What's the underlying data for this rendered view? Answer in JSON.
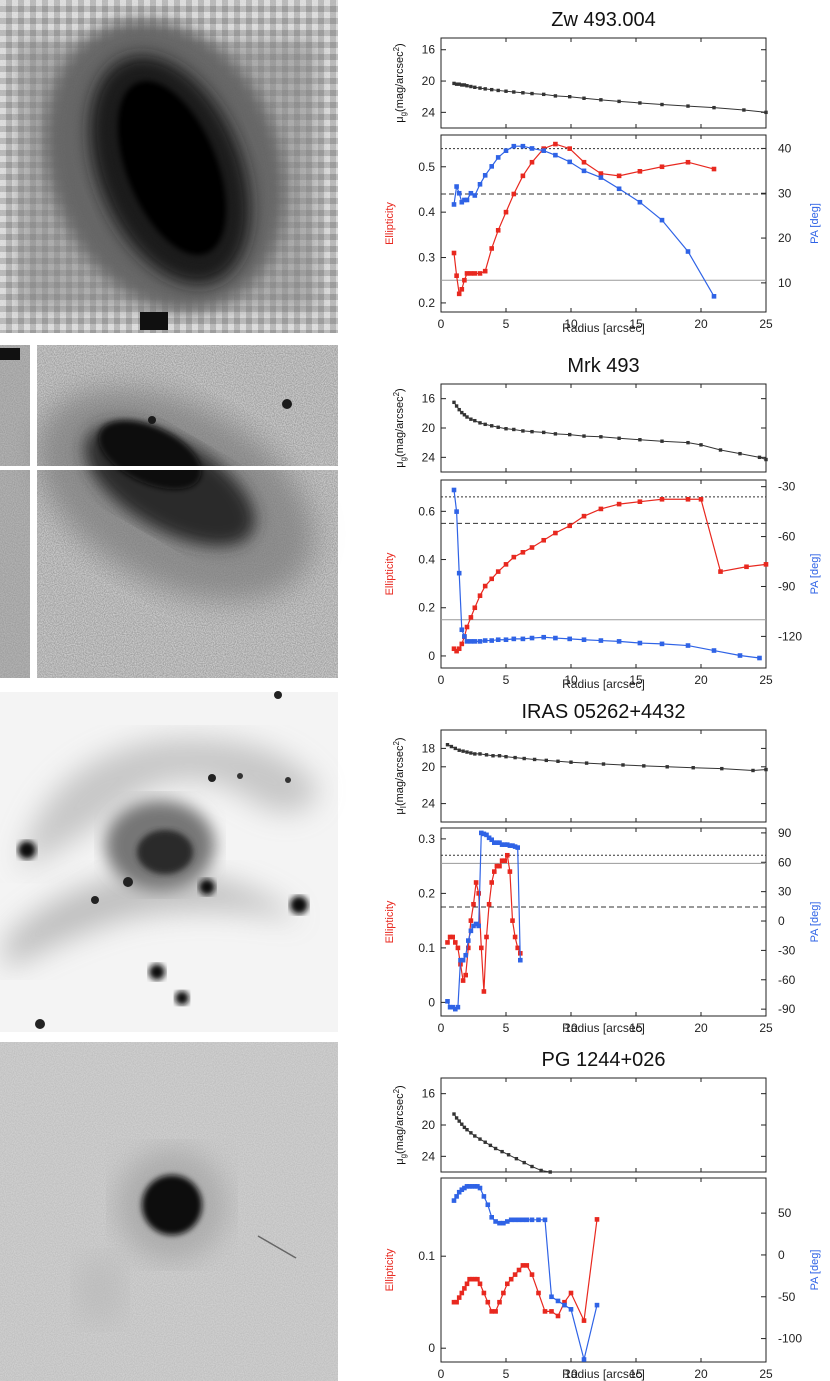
{
  "chart_data": [
    {
      "type": "line",
      "title": "Zw 493.004",
      "x_label": "Radius [arcsec]",
      "x_range": [
        0,
        25
      ],
      "x_ticks": [
        0,
        5,
        10,
        15,
        20,
        25
      ],
      "sb_panel": {
        "ylabel_main": "μ",
        "ylabel_sub": "g",
        "ylabel_rest": "(mag/arcsec",
        "ylabel_sup": "2",
        "ylabel_end": ")",
        "y_range": [
          26,
          14.5
        ],
        "y_ticks": [
          16,
          20,
          24
        ],
        "x": [
          1,
          1.2,
          1.4,
          1.6,
          1.8,
          2,
          2.3,
          2.6,
          3,
          3.4,
          3.9,
          4.4,
          5,
          5.6,
          6.3,
          7,
          7.9,
          8.8,
          9.9,
          11,
          12.3,
          13.7,
          15.3,
          17,
          19,
          21,
          23.3,
          25
        ],
        "y": [
          20.3,
          20.4,
          20.4,
          20.5,
          20.5,
          20.6,
          20.7,
          20.8,
          20.9,
          21.0,
          21.1,
          21.2,
          21.3,
          21.4,
          21.5,
          21.6,
          21.7,
          21.9,
          22.0,
          22.2,
          22.4,
          22.6,
          22.8,
          23.0,
          23.2,
          23.4,
          23.7,
          24.0
        ]
      },
      "left_axis": {
        "label": "Ellipticity",
        "range": [
          0.18,
          0.57
        ],
        "ticks": [
          "0.2",
          "0.3",
          "0.4",
          "0.5"
        ],
        "tick_values": [
          0.2,
          0.3,
          0.4,
          0.5
        ]
      },
      "right_axis": {
        "label": "PA [deg]",
        "range": [
          3.5,
          43
        ],
        "ticks": [
          "10",
          "20",
          "30",
          "40"
        ],
        "tick_values": [
          10,
          20,
          30,
          40
        ]
      },
      "ref_lines": [
        {
          "value": 0.54,
          "axis": "left",
          "style": "dotted"
        },
        {
          "value": 0.44,
          "axis": "left",
          "style": "dashed"
        },
        {
          "value": 0.25,
          "axis": "left",
          "style": "solid"
        }
      ],
      "series": [
        {
          "axis": "left",
          "color": "#e8281f",
          "x": [
            1.0,
            1.2,
            1.4,
            1.6,
            1.8,
            2.0,
            2.3,
            2.6,
            3.0,
            3.4,
            3.9,
            4.4,
            5.0,
            5.6,
            6.3,
            7.0,
            7.9,
            8.8,
            9.9,
            11.0,
            12.3,
            13.7,
            15.3,
            17.0,
            19.0,
            21.0
          ],
          "y": [
            0.31,
            0.26,
            0.22,
            0.23,
            0.25,
            0.265,
            0.265,
            0.265,
            0.265,
            0.27,
            0.32,
            0.36,
            0.4,
            0.44,
            0.48,
            0.51,
            0.54,
            0.55,
            0.54,
            0.51,
            0.485,
            0.48,
            0.49,
            0.5,
            0.51,
            0.495
          ]
        },
        {
          "axis": "right",
          "color": "#2f63e6",
          "x": [
            1.0,
            1.2,
            1.4,
            1.6,
            1.8,
            2.0,
            2.3,
            2.6,
            3.0,
            3.4,
            3.9,
            4.4,
            5.0,
            5.6,
            6.3,
            7.0,
            7.9,
            8.8,
            9.9,
            11.0,
            12.3,
            13.7,
            15.3,
            17.0,
            19.0,
            21.0
          ],
          "y": [
            27.5,
            31.5,
            30,
            28,
            28.5,
            28.5,
            30,
            29.5,
            32,
            34,
            36,
            38,
            39.5,
            40.5,
            40.5,
            40,
            39.5,
            38.5,
            37,
            35,
            33.5,
            31,
            28,
            24,
            17,
            7
          ]
        }
      ]
    },
    {
      "type": "line",
      "title": "Mrk 493",
      "x_label": "Radius [arcsec]",
      "x_range": [
        0,
        25
      ],
      "x_ticks": [
        0,
        5,
        10,
        15,
        20,
        25
      ],
      "sb_panel": {
        "ylabel_main": "μ",
        "ylabel_sub": "g",
        "ylabel_rest": "(mag/arcsec",
        "ylabel_sup": "2",
        "ylabel_end": ")",
        "y_range": [
          26,
          14
        ],
        "y_ticks": [
          16,
          20,
          24
        ],
        "x": [
          1,
          1.2,
          1.4,
          1.6,
          1.8,
          2,
          2.3,
          2.6,
          3,
          3.4,
          3.9,
          4.4,
          5,
          5.6,
          6.3,
          7,
          7.9,
          8.8,
          9.9,
          11,
          12.3,
          13.7,
          15.3,
          17,
          19,
          20,
          21.5,
          23,
          24.5,
          25
        ],
        "y": [
          16.5,
          17.0,
          17.5,
          17.9,
          18.2,
          18.5,
          18.8,
          19.0,
          19.3,
          19.5,
          19.7,
          19.9,
          20.1,
          20.2,
          20.4,
          20.5,
          20.6,
          20.8,
          20.9,
          21.1,
          21.2,
          21.4,
          21.6,
          21.8,
          22.0,
          22.3,
          23.0,
          23.5,
          24.0,
          24.3
        ]
      },
      "left_axis": {
        "label": "Ellipticity",
        "range": [
          -0.05,
          0.73
        ],
        "ticks": [
          "0",
          "0.2",
          "0.4",
          "0.6"
        ],
        "tick_values": [
          0,
          0.2,
          0.4,
          0.6
        ]
      },
      "right_axis": {
        "label": "PA [deg]",
        "range": [
          -139,
          -26
        ],
        "ticks": [
          "-30",
          "-60",
          "-90",
          "-120"
        ],
        "tick_values": [
          -30,
          -60,
          -90,
          -120
        ]
      },
      "ref_lines": [
        {
          "value": 0.66,
          "axis": "left",
          "style": "dotted"
        },
        {
          "value": 0.55,
          "axis": "left",
          "style": "dashed"
        },
        {
          "value": 0.15,
          "axis": "left",
          "style": "solid"
        }
      ],
      "series": [
        {
          "axis": "left",
          "color": "#e8281f",
          "x": [
            1.0,
            1.2,
            1.4,
            1.6,
            1.8,
            2.0,
            2.3,
            2.6,
            3.0,
            3.4,
            3.9,
            4.4,
            5.0,
            5.6,
            6.3,
            7.0,
            7.9,
            8.8,
            9.9,
            11.0,
            12.3,
            13.7,
            15.3,
            17.0,
            19.0,
            20.0,
            21.5,
            23.5,
            25.0
          ],
          "y": [
            0.03,
            0.02,
            0.03,
            0.05,
            0.08,
            0.12,
            0.16,
            0.2,
            0.25,
            0.29,
            0.32,
            0.35,
            0.38,
            0.41,
            0.43,
            0.45,
            0.48,
            0.51,
            0.54,
            0.58,
            0.61,
            0.63,
            0.64,
            0.65,
            0.65,
            0.65,
            0.35,
            0.37,
            0.38
          ]
        },
        {
          "axis": "right",
          "color": "#2f63e6",
          "x": [
            1.0,
            1.2,
            1.4,
            1.6,
            1.8,
            2.0,
            2.3,
            2.6,
            3.0,
            3.4,
            3.9,
            4.4,
            5.0,
            5.6,
            6.3,
            7.0,
            7.9,
            8.8,
            9.9,
            11.0,
            12.3,
            13.7,
            15.3,
            17.0,
            19.0,
            21.0,
            23.0,
            24.5
          ],
          "y": [
            -32,
            -45,
            -82,
            -116,
            -120,
            -123,
            -123,
            -123,
            -123,
            -122.5,
            -122.5,
            -122,
            -122,
            -121.5,
            -121.5,
            -121,
            -120.5,
            -121,
            -121.5,
            -122,
            -122.5,
            -123,
            -124,
            -124.5,
            -125.5,
            -128.5,
            -131.5,
            -133
          ]
        }
      ]
    },
    {
      "type": "line",
      "title": "IRAS 05262+4432",
      "x_label": "Radius [arcsec]",
      "x_range": [
        0,
        25
      ],
      "x_ticks": [
        0,
        5,
        10,
        15,
        20,
        25
      ],
      "sb_panel": {
        "ylabel_main": "μ",
        "ylabel_sub": "I",
        "ylabel_rest": "(mag/arcsec",
        "ylabel_sup": "2",
        "ylabel_end": ")",
        "y_range": [
          26,
          16
        ],
        "y_ticks": [
          18,
          20,
          24
        ],
        "x": [
          0.5,
          0.8,
          1.1,
          1.4,
          1.7,
          2,
          2.3,
          2.6,
          3,
          3.5,
          4,
          4.5,
          5,
          5.7,
          6.4,
          7.2,
          8.1,
          9,
          10,
          11.2,
          12.5,
          14,
          15.6,
          17.4,
          19.4,
          21.6,
          24,
          25
        ],
        "y": [
          17.6,
          17.8,
          18.0,
          18.2,
          18.3,
          18.4,
          18.5,
          18.6,
          18.6,
          18.7,
          18.8,
          18.8,
          18.9,
          19.0,
          19.1,
          19.2,
          19.3,
          19.4,
          19.5,
          19.6,
          19.7,
          19.8,
          19.9,
          20.0,
          20.1,
          20.2,
          20.4,
          20.3
        ]
      },
      "left_axis": {
        "label": "Ellipticity",
        "range": [
          -0.025,
          0.32
        ],
        "ticks": [
          "0",
          "0.1",
          "0.2",
          "0.3"
        ],
        "tick_values": [
          0,
          0.1,
          0.2,
          0.3
        ]
      },
      "right_axis": {
        "label": "PA [deg]",
        "range": [
          -97,
          95
        ],
        "ticks": [
          "90",
          "60",
          "30",
          "0",
          "-30",
          "-60",
          "-90"
        ],
        "tick_values": [
          90,
          60,
          30,
          0,
          -30,
          -60,
          -90
        ]
      },
      "ref_lines": [
        {
          "value": 0.27,
          "axis": "left",
          "style": "dotted"
        },
        {
          "value": 0.255,
          "axis": "left",
          "style": "solid"
        },
        {
          "value": 0.175,
          "axis": "left",
          "style": "dashed"
        }
      ],
      "series": [
        {
          "axis": "left",
          "color": "#e8281f",
          "x": [
            0.5,
            0.7,
            0.9,
            1.1,
            1.3,
            1.5,
            1.7,
            1.9,
            2.1,
            2.3,
            2.5,
            2.7,
            2.9,
            3.1,
            3.3,
            3.5,
            3.7,
            3.9,
            4.1,
            4.3,
            4.5,
            4.7,
            4.9,
            5.1,
            5.3,
            5.5,
            5.7,
            5.9,
            6.1
          ],
          "y": [
            0.11,
            0.12,
            0.12,
            0.11,
            0.1,
            0.07,
            0.04,
            0.05,
            0.1,
            0.15,
            0.18,
            0.22,
            0.2,
            0.1,
            0.02,
            0.12,
            0.18,
            0.22,
            0.24,
            0.25,
            0.25,
            0.26,
            0.26,
            0.27,
            0.24,
            0.15,
            0.12,
            0.1,
            0.09
          ]
        },
        {
          "axis": "right",
          "color": "#2f63e6",
          "x": [
            0.5,
            0.7,
            0.9,
            1.1,
            1.3,
            1.5,
            1.7,
            1.9,
            2.1,
            2.3,
            2.5,
            2.7,
            2.9,
            3.1,
            3.3,
            3.5,
            3.7,
            3.9,
            4.1,
            4.3,
            4.5,
            4.7,
            4.9,
            5.1,
            5.3,
            5.5,
            5.7,
            5.9,
            6.1
          ],
          "y": [
            -82,
            -88,
            -88,
            -90,
            -88,
            -40,
            -40,
            -35,
            -20,
            -10,
            -5,
            -3,
            -5,
            90,
            89,
            88,
            85,
            83,
            80,
            80,
            80,
            78,
            78,
            78,
            77,
            77,
            76,
            75,
            -40
          ]
        }
      ]
    },
    {
      "type": "line",
      "title": "PG 1244+026",
      "x_label": "Radius [arcsec]",
      "x_range": [
        0,
        25
      ],
      "x_ticks": [
        0,
        5,
        10,
        15,
        20,
        25
      ],
      "sb_panel": {
        "ylabel_main": "μ",
        "ylabel_sub": "g",
        "ylabel_rest": "(mag/arcsec",
        "ylabel_sup": "2",
        "ylabel_end": ")",
        "y_range": [
          26,
          14
        ],
        "y_ticks": [
          16,
          20,
          24
        ],
        "x": [
          1,
          1.2,
          1.4,
          1.6,
          1.8,
          2,
          2.3,
          2.6,
          3,
          3.4,
          3.8,
          4.2,
          4.7,
          5.2,
          5.8,
          6.4,
          7,
          7.7,
          8.4
        ],
        "y": [
          18.6,
          19.1,
          19.5,
          19.9,
          20.3,
          20.6,
          21.0,
          21.4,
          21.8,
          22.2,
          22.6,
          23.0,
          23.4,
          23.8,
          24.3,
          24.8,
          25.3,
          25.8,
          26.0
        ]
      },
      "left_axis": {
        "label": "Ellipticity",
        "range": [
          -0.015,
          0.185
        ],
        "ticks": [
          "0",
          "0.1"
        ],
        "tick_values": [
          0,
          0.1
        ]
      },
      "right_axis": {
        "label": "PA [deg]",
        "range": [
          -128,
          92
        ],
        "ticks": [
          "50",
          "0",
          "-50",
          "-100"
        ],
        "tick_values": [
          50,
          0,
          -50,
          -100
        ]
      },
      "ref_lines": [],
      "series": [
        {
          "axis": "left",
          "color": "#e8281f",
          "x": [
            1.0,
            1.2,
            1.4,
            1.6,
            1.8,
            2.0,
            2.2,
            2.4,
            2.6,
            2.8,
            3.0,
            3.3,
            3.6,
            3.9,
            4.2,
            4.5,
            4.8,
            5.1,
            5.4,
            5.7,
            6.0,
            6.3,
            6.6,
            7.0,
            7.5,
            8.0,
            8.5,
            9.0,
            9.5,
            10.0,
            11.0,
            12.0
          ],
          "y": [
            0.05,
            0.05,
            0.055,
            0.06,
            0.065,
            0.07,
            0.075,
            0.075,
            0.075,
            0.075,
            0.07,
            0.06,
            0.05,
            0.04,
            0.04,
            0.05,
            0.06,
            0.07,
            0.075,
            0.08,
            0.085,
            0.09,
            0.09,
            0.08,
            0.06,
            0.04,
            0.04,
            0.035,
            0.05,
            0.06,
            0.03,
            0.14
          ]
        },
        {
          "axis": "right",
          "color": "#2f63e6",
          "x": [
            1.0,
            1.2,
            1.4,
            1.6,
            1.8,
            2.0,
            2.2,
            2.4,
            2.6,
            2.8,
            3.0,
            3.3,
            3.6,
            3.9,
            4.2,
            4.5,
            4.8,
            5.1,
            5.4,
            5.7,
            6.0,
            6.3,
            6.6,
            7.0,
            7.5,
            8.0,
            8.5,
            9.0,
            9.5,
            10.0,
            11.0,
            12.0
          ],
          "y": [
            65,
            70,
            75,
            78,
            80,
            82,
            82,
            82,
            82,
            82,
            80,
            70,
            60,
            45,
            40,
            38,
            38,
            40,
            42,
            42,
            42,
            42,
            42,
            42,
            42,
            42,
            -50,
            -55,
            -60,
            -65,
            -125,
            -60
          ]
        }
      ]
    }
  ]
}
